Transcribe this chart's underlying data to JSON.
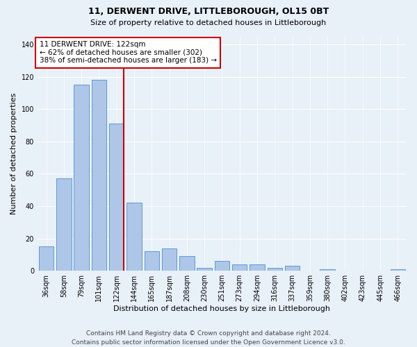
{
  "title": "11, DERWENT DRIVE, LITTLEBOROUGH, OL15 0BT",
  "subtitle": "Size of property relative to detached houses in Littleborough",
  "xlabel": "Distribution of detached houses by size in Littleborough",
  "ylabel": "Number of detached properties",
  "categories": [
    "36sqm",
    "58sqm",
    "79sqm",
    "101sqm",
    "122sqm",
    "144sqm",
    "165sqm",
    "187sqm",
    "208sqm",
    "230sqm",
    "251sqm",
    "273sqm",
    "294sqm",
    "316sqm",
    "337sqm",
    "359sqm",
    "380sqm",
    "402sqm",
    "423sqm",
    "445sqm",
    "466sqm"
  ],
  "values": [
    15,
    57,
    115,
    118,
    91,
    42,
    12,
    14,
    9,
    2,
    6,
    4,
    4,
    2,
    3,
    0,
    1,
    0,
    0,
    0,
    1
  ],
  "bar_color": "#aec6e8",
  "bar_edge_color": "#5b9bd5",
  "vline_bar_index": 4,
  "vline_color": "#cc0000",
  "ylim": [
    0,
    145
  ],
  "yticks": [
    0,
    20,
    40,
    60,
    80,
    100,
    120,
    140
  ],
  "annotation_text": "11 DERWENT DRIVE: 122sqm\n← 62% of detached houses are smaller (302)\n38% of semi-detached houses are larger (183) →",
  "annotation_box_color": "#ffffff",
  "annotation_box_edge": "#cc0000",
  "footer_line1": "Contains HM Land Registry data © Crown copyright and database right 2024.",
  "footer_line2": "Contains public sector information licensed under the Open Government Licence v3.0.",
  "background_color": "#e8f0f8",
  "plot_bg_color": "#e8f0f8",
  "grid_color": "#ffffff",
  "title_fontsize": 9,
  "subtitle_fontsize": 8,
  "axis_label_fontsize": 8,
  "tick_fontsize": 7,
  "annotation_fontsize": 7.5,
  "footer_fontsize": 6.5
}
